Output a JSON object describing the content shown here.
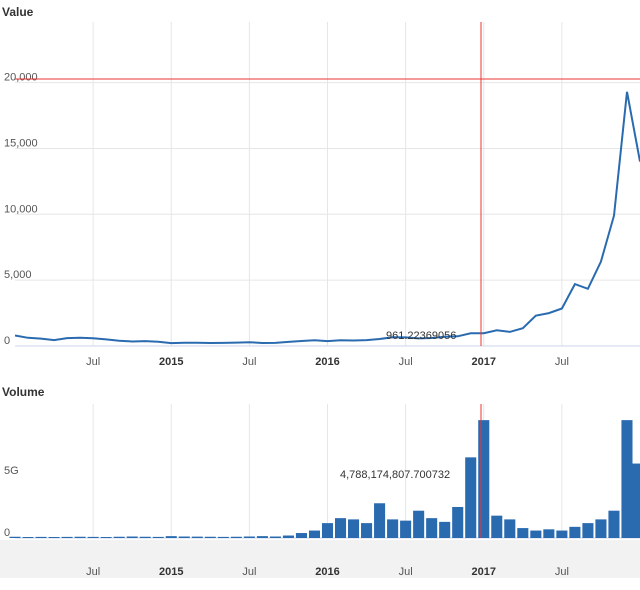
{
  "chart_data": [
    {
      "type": "line",
      "title": "Value",
      "color": "#2a6bb0",
      "grid": true,
      "x": [
        "2014-01",
        "2014-02",
        "2014-03",
        "2014-04",
        "2014-05",
        "2014-06",
        "2014-07",
        "2014-08",
        "2014-09",
        "2014-10",
        "2014-11",
        "2014-12",
        "2015-01",
        "2015-02",
        "2015-03",
        "2015-04",
        "2015-05",
        "2015-06",
        "2015-07",
        "2015-08",
        "2015-09",
        "2015-10",
        "2015-11",
        "2015-12",
        "2016-01",
        "2016-02",
        "2016-03",
        "2016-04",
        "2016-05",
        "2016-06",
        "2016-07",
        "2016-08",
        "2016-09",
        "2016-10",
        "2016-11",
        "2016-12",
        "2017-01",
        "2017-02",
        "2017-03",
        "2017-04",
        "2017-05",
        "2017-06",
        "2017-07",
        "2017-08",
        "2017-09",
        "2017-10",
        "2017-11",
        "2017-12",
        "2018-01"
      ],
      "values": [
        800,
        620,
        560,
        450,
        600,
        620,
        590,
        500,
        400,
        340,
        370,
        320,
        220,
        250,
        250,
        230,
        235,
        260,
        285,
        230,
        235,
        310,
        380,
        430,
        370,
        435,
        415,
        450,
        530,
        670,
        655,
        575,
        610,
        700,
        740,
        961,
        970,
        1190,
        1070,
        1350,
        2300,
        2500,
        2850,
        4700,
        4340,
        6400,
        9900,
        19300,
        14000
      ],
      "xlim": [
        "2014-01",
        "2018-01"
      ],
      "xticks": [
        {
          "value": "2014-07",
          "label": "Jul"
        },
        {
          "value": "2015-01",
          "label": "2015"
        },
        {
          "value": "2015-07",
          "label": "Jul"
        },
        {
          "value": "2016-01",
          "label": "2016"
        },
        {
          "value": "2016-07",
          "label": "Jul"
        },
        {
          "value": "2017-01",
          "label": "2017"
        },
        {
          "value": "2017-07",
          "label": "Jul"
        }
      ],
      "ylim": [
        0,
        24600
      ],
      "yticks": [
        0,
        {
          "value": 5000,
          "label": "5,000"
        },
        {
          "value": 10000,
          "label": "10,000"
        },
        {
          "value": 15000,
          "label": "15,000"
        },
        {
          "value": 20000,
          "label": "20,000"
        }
      ],
      "annotation": "961.22369056"
    },
    {
      "type": "bar",
      "title": "Volume",
      "color": "#2a6bb0",
      "grid": true,
      "x": [
        "2014-01",
        "2014-02",
        "2014-03",
        "2014-04",
        "2014-05",
        "2014-06",
        "2014-07",
        "2014-08",
        "2014-09",
        "2014-10",
        "2014-11",
        "2014-12",
        "2015-01",
        "2015-02",
        "2015-03",
        "2015-04",
        "2015-05",
        "2015-06",
        "2015-07",
        "2015-08",
        "2015-09",
        "2015-10",
        "2015-11",
        "2015-12",
        "2016-01",
        "2016-02",
        "2016-03",
        "2016-04",
        "2016-05",
        "2016-06",
        "2016-07",
        "2016-08",
        "2016-09",
        "2016-10",
        "2016-11",
        "2016-12",
        "2017-01",
        "2017-02",
        "2017-03",
        "2017-04",
        "2017-05",
        "2017-06",
        "2017-07",
        "2017-08",
        "2017-09",
        "2017-10",
        "2017-11",
        "2017-12",
        "2018-01"
      ],
      "values": [
        100000000,
        80000000,
        90000000,
        80000000,
        90000000,
        100000000,
        90000000,
        80000000,
        100000000,
        120000000,
        100000000,
        90000000,
        150000000,
        120000000,
        110000000,
        100000000,
        90000000,
        100000000,
        120000000,
        150000000,
        120000000,
        200000000,
        400000000,
        600000000,
        1200000000,
        1600000000,
        1500000000,
        1200000000,
        2800000000,
        1500000000,
        1400000000,
        2200000000,
        1600000000,
        1300000000,
        2500000000,
        6500000000,
        9500000000,
        1800000000,
        1500000000,
        800000000,
        600000000,
        700000000,
        600000000,
        900000000,
        1200000000,
        1500000000,
        2200000000,
        9500000000,
        6000000000
      ],
      "xlim": [
        "2014-01",
        "2018-01"
      ],
      "xticks": [
        {
          "value": "2014-07",
          "label": "Jul"
        },
        {
          "value": "2015-01",
          "label": "2015"
        },
        {
          "value": "2015-07",
          "label": "Jul"
        },
        {
          "value": "2016-01",
          "label": "2016"
        },
        {
          "value": "2016-07",
          "label": "Jul"
        },
        {
          "value": "2017-01",
          "label": "2017"
        },
        {
          "value": "2017-07",
          "label": "Jul"
        }
      ],
      "ylim": [
        0,
        10800000000
      ],
      "yticks": [
        0,
        {
          "value": 5000000000,
          "label": "5G"
        }
      ],
      "annotation": "4,788,174,807.700732"
    }
  ]
}
